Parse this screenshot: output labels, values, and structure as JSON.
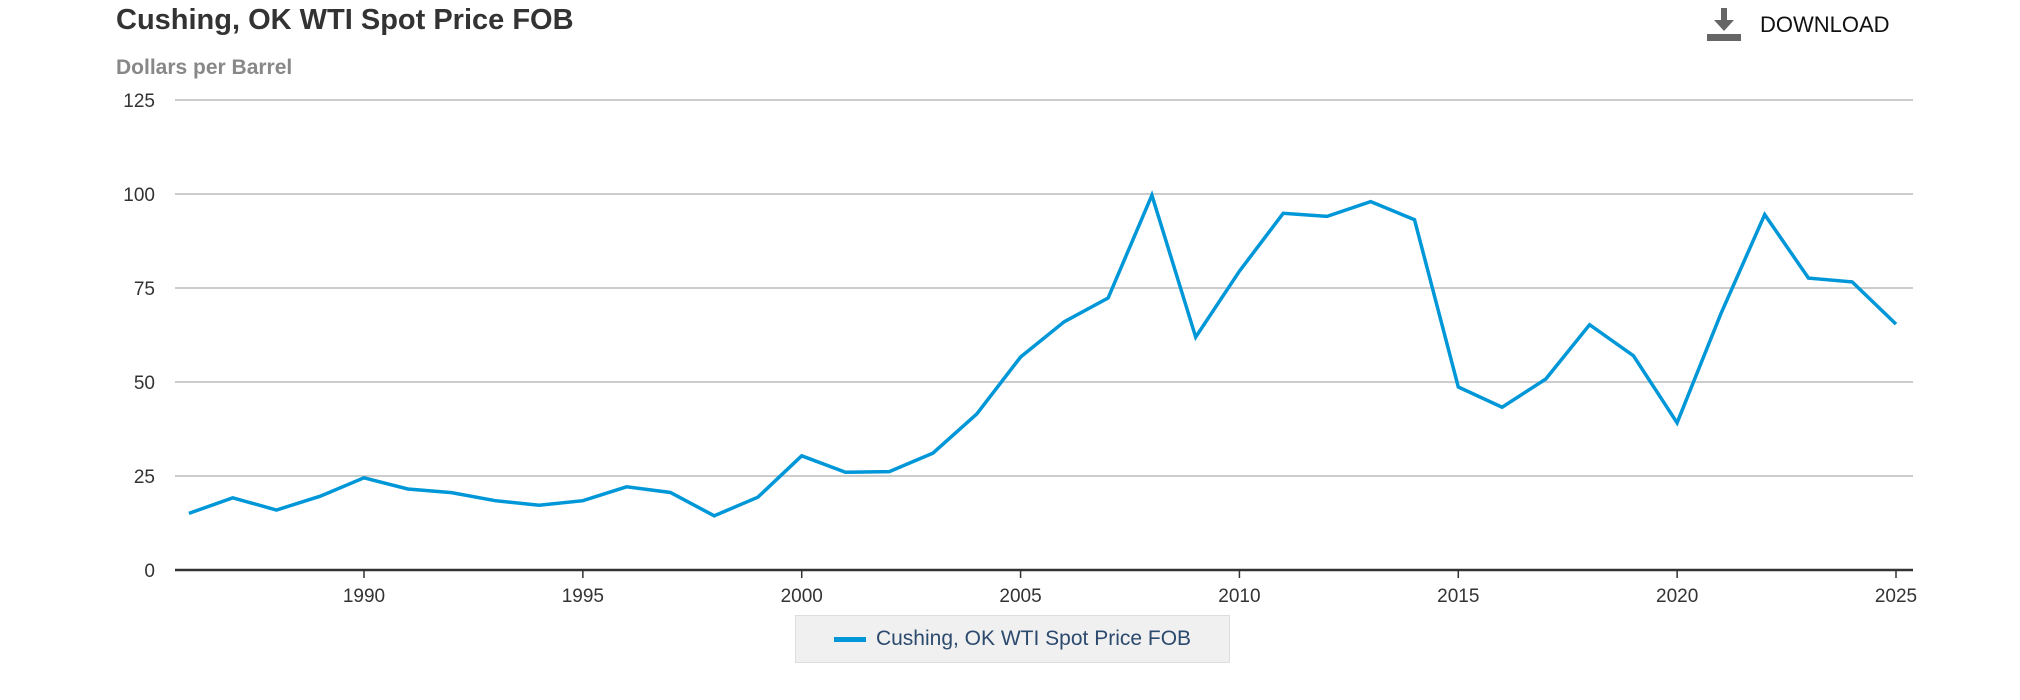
{
  "chart_data": {
    "type": "line",
    "title": "Cushing, OK WTI Spot Price FOB",
    "ylabel": "Dollars per Barrel",
    "xlabel": "",
    "xlim": [
      1985.7,
      2025.4
    ],
    "ylim": [
      0,
      125
    ],
    "yticks": [
      0,
      25,
      50,
      75,
      100,
      125
    ],
    "xticks": [
      1990,
      1995,
      2000,
      2005,
      2010,
      2015,
      2020,
      2025
    ],
    "grid": true,
    "legend_position": "bottom-center",
    "series": [
      {
        "name": "Cushing, OK WTI Spot Price FOB",
        "color": "#0097d8",
        "x": [
          1986,
          1987,
          1988,
          1989,
          1990,
          1991,
          1992,
          1993,
          1994,
          1995,
          1996,
          1997,
          1998,
          1999,
          2000,
          2001,
          2002,
          2003,
          2004,
          2005,
          2006,
          2007,
          2008,
          2009,
          2010,
          2011,
          2012,
          2013,
          2014,
          2015,
          2016,
          2017,
          2018,
          2019,
          2020,
          2021,
          2022,
          2023,
          2024,
          2025
        ],
        "values": [
          15.05,
          19.2,
          15.97,
          19.64,
          24.53,
          21.54,
          20.58,
          18.43,
          17.2,
          18.43,
          22.12,
          20.61,
          14.42,
          19.35,
          30.38,
          25.98,
          26.18,
          31.08,
          41.51,
          56.64,
          66.05,
          72.34,
          99.67,
          61.95,
          79.48,
          94.88,
          94.05,
          97.98,
          93.17,
          48.66,
          43.29,
          50.8,
          65.23,
          56.99,
          39.16,
          68.17,
          94.53,
          77.64,
          76.63,
          65.4
        ]
      }
    ]
  },
  "toolbar": {
    "download_label": "DOWNLOAD",
    "download_icon": "download-icon"
  }
}
